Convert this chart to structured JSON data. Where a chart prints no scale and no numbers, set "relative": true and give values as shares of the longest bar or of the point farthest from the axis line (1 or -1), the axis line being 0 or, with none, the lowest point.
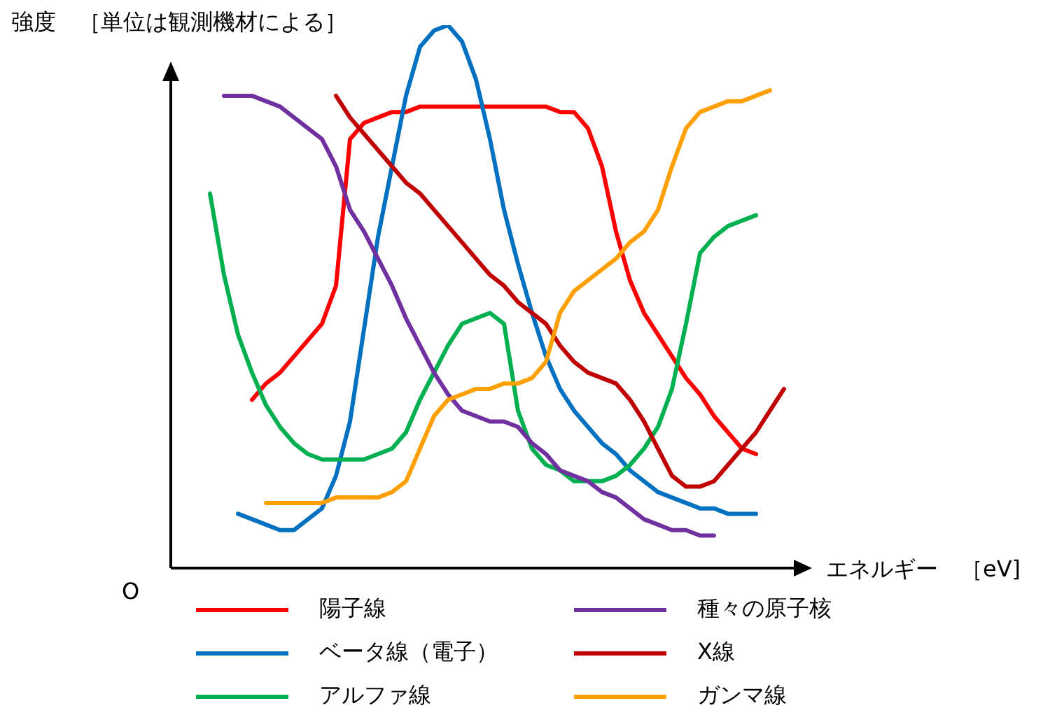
{
  "chart_data": {
    "type": "line",
    "xlabel": "エネルギー　［eV]",
    "ylabel": "強度　［単位は観測機材による］",
    "relative": true,
    "legend": "bottom",
    "annotations": [
      "O"
    ],
    "categories": [
      null,
      null,
      null,
      null,
      null,
      null,
      null,
      null,
      null,
      null,
      null,
      null,
      null,
      null,
      null,
      null,
      null,
      null,
      null,
      null,
      null,
      null,
      null,
      null,
      null,
      null,
      null,
      null,
      null,
      null,
      null,
      null,
      null,
      null,
      null,
      null,
      null,
      null,
      null,
      null,
      null,
      null,
      null,
      null
    ],
    "series": [
      {
        "name": "陽子線",
        "color": "#ff0000",
        "values": [
          null,
          null,
          null,
          null,
          null,
          0.31,
          0.34,
          0.36,
          0.39,
          0.42,
          0.45,
          0.52,
          0.79,
          0.82,
          0.83,
          0.84,
          0.84,
          0.85,
          0.85,
          0.85,
          0.85,
          0.85,
          0.85,
          0.85,
          0.85,
          0.85,
          0.85,
          0.84,
          0.84,
          0.81,
          0.74,
          0.62,
          0.53,
          0.47,
          0.43,
          0.39,
          0.35,
          0.32,
          0.28,
          0.25,
          0.22,
          0.21,
          null,
          null
        ]
      },
      {
        "name": "ベータ線（電子）",
        "color": "#0070c0",
        "values": [
          null,
          null,
          null,
          null,
          0.1,
          0.09,
          0.08,
          0.07,
          0.07,
          0.09,
          0.11,
          0.17,
          0.27,
          0.44,
          0.61,
          0.74,
          0.87,
          0.96,
          0.99,
          1.0,
          0.97,
          0.9,
          0.79,
          0.66,
          0.56,
          0.47,
          0.39,
          0.33,
          0.29,
          0.26,
          0.23,
          0.21,
          0.18,
          0.16,
          0.14,
          0.13,
          0.12,
          0.11,
          0.11,
          0.1,
          0.1,
          0.1,
          null,
          null
        ]
      },
      {
        "name": "アルファ線",
        "color": "#00b050",
        "values": [
          null,
          null,
          0.69,
          0.54,
          0.43,
          0.36,
          0.3,
          0.26,
          0.23,
          0.21,
          0.2,
          0.2,
          0.2,
          0.2,
          0.21,
          0.22,
          0.25,
          0.31,
          0.36,
          0.41,
          0.45,
          0.46,
          0.47,
          0.45,
          0.29,
          0.22,
          0.19,
          0.18,
          0.16,
          0.16,
          0.16,
          0.17,
          0.19,
          0.22,
          0.26,
          0.33,
          0.45,
          0.58,
          0.61,
          0.63,
          0.64,
          0.65,
          null,
          null
        ]
      },
      {
        "name": "種々の原子核",
        "color": "#7030a0",
        "values": [
          null,
          null,
          null,
          0.87,
          0.87,
          0.87,
          0.86,
          0.85,
          0.83,
          0.81,
          0.79,
          0.74,
          0.66,
          0.62,
          0.57,
          0.52,
          0.46,
          0.41,
          0.36,
          0.32,
          0.29,
          0.28,
          0.27,
          0.27,
          0.26,
          0.23,
          0.21,
          0.18,
          0.17,
          0.16,
          0.14,
          0.13,
          0.11,
          0.09,
          0.08,
          0.07,
          0.07,
          0.06,
          0.06,
          null,
          null,
          null,
          null,
          null
        ]
      },
      {
        "name": "X線",
        "color": "#c00000",
        "values": [
          null,
          null,
          null,
          null,
          null,
          null,
          null,
          null,
          null,
          null,
          null,
          0.87,
          0.83,
          0.8,
          0.77,
          0.74,
          0.71,
          0.69,
          0.66,
          0.63,
          0.6,
          0.57,
          0.54,
          0.52,
          0.49,
          0.47,
          0.45,
          0.41,
          0.38,
          0.36,
          0.35,
          0.34,
          0.31,
          0.27,
          0.22,
          0.17,
          0.15,
          0.15,
          0.16,
          0.19,
          0.22,
          0.25,
          0.29,
          0.33
        ]
      },
      {
        "name": "ガンマ線",
        "color": "#ffa000",
        "values": [
          null,
          null,
          null,
          null,
          null,
          null,
          0.12,
          0.12,
          0.12,
          0.12,
          0.12,
          0.13,
          0.13,
          0.13,
          0.13,
          0.14,
          0.16,
          0.22,
          0.28,
          0.31,
          0.32,
          0.33,
          0.33,
          0.34,
          0.34,
          0.35,
          0.38,
          0.47,
          0.51,
          0.53,
          0.55,
          0.57,
          0.6,
          0.62,
          0.66,
          0.74,
          0.81,
          0.84,
          0.85,
          0.86,
          0.86,
          0.87,
          0.88,
          null
        ]
      }
    ]
  }
}
